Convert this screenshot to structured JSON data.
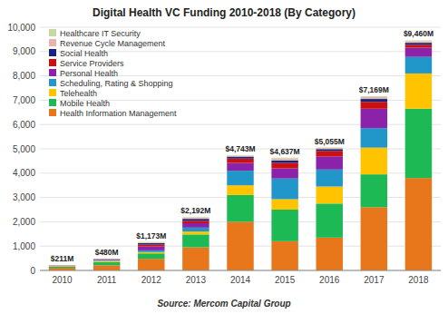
{
  "chart_data": {
    "type": "bar",
    "stacked": true,
    "title": "Digital Health VC Funding 2010-2018 (By Category)",
    "source": "Source: Mercom Capital Group",
    "categories": [
      "2010",
      "2011",
      "2012",
      "2013",
      "2014",
      "2015",
      "2016",
      "2017",
      "2018"
    ],
    "series": [
      {
        "name": "Health Information Management",
        "color": "#E8761A",
        "values": [
          110,
          210,
          480,
          950,
          2000,
          1200,
          1350,
          2600,
          3800
        ]
      },
      {
        "name": "Mobile Health",
        "color": "#1DB954",
        "values": [
          50,
          140,
          220,
          530,
          1100,
          1300,
          1400,
          1350,
          2850
        ]
      },
      {
        "name": "Telehealth",
        "color": "#FFC300",
        "values": [
          18,
          45,
          55,
          120,
          400,
          430,
          700,
          1100,
          1450
        ]
      },
      {
        "name": "Scheduling, Rating & Shopping",
        "color": "#2196C8",
        "values": [
          10,
          30,
          70,
          160,
          600,
          850,
          700,
          800,
          680
        ]
      },
      {
        "name": "Personal Health",
        "color": "#8B22AA",
        "values": [
          8,
          22,
          160,
          180,
          320,
          420,
          540,
          800,
          380
        ]
      },
      {
        "name": "Service Providers",
        "color": "#CC1010",
        "values": [
          5,
          12,
          80,
          100,
          180,
          220,
          220,
          280,
          120
        ]
      },
      {
        "name": "Social Health",
        "color": "#1A237E",
        "values": [
          4,
          10,
          55,
          80,
          80,
          100,
          80,
          120,
          80
        ]
      },
      {
        "name": "Revenue Cycle Management",
        "color": "#E8B4B0",
        "values": [
          3,
          6,
          28,
          42,
          40,
          80,
          45,
          80,
          60
        ]
      },
      {
        "name": "Healthcare IT Security",
        "color": "#C8D9A0",
        "values": [
          3,
          5,
          25,
          30,
          23,
          37,
          20,
          39,
          40
        ]
      }
    ],
    "totals": [
      211,
      480,
      1173,
      2192,
      4743,
      4637,
      5055,
      7169,
      9460
    ],
    "total_labels": [
      "$211M",
      "$480M",
      "$1,173M",
      "$2,192M",
      "$4,743M",
      "$4,637M",
      "$5,055M",
      "$7,169M",
      "$9,460M"
    ],
    "ylim": [
      0,
      10000
    ],
    "yticks": [
      0,
      {
        "value": 1000,
        "label": "1,000"
      },
      {
        "value": 2000,
        "label": "2,000"
      },
      {
        "value": 3000,
        "label": "3,000"
      },
      {
        "value": 4000,
        "label": "4,000"
      },
      {
        "value": 5000,
        "label": "5,000"
      },
      {
        "value": 6000,
        "label": "6,000"
      },
      {
        "value": 7000,
        "label": "7,000"
      },
      {
        "value": 8000,
        "label": "8,000"
      },
      {
        "value": 9000,
        "label": "9,000"
      },
      {
        "value": 10000,
        "label": "10,000"
      }
    ],
    "grid": true,
    "legend": "upper left"
  }
}
